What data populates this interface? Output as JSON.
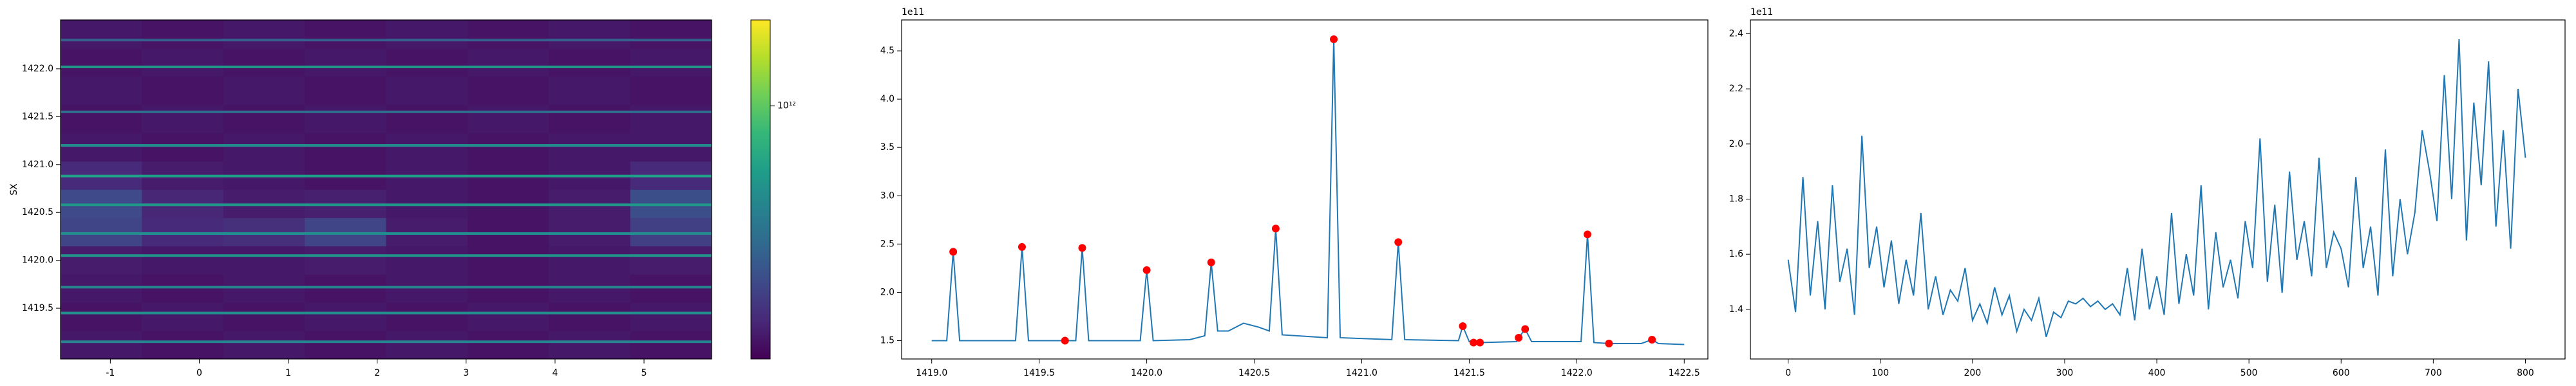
{
  "chart_data": [
    {
      "type": "heatmap",
      "ylabel": "SX",
      "x_edges": [
        -1.56,
        -0.645,
        0.27,
        1.185,
        2.1,
        3.015,
        3.93,
        4.845,
        5.76
      ],
      "y_edges": [
        1418.97,
        1419.265,
        1419.56,
        1419.855,
        1420.15,
        1420.445,
        1420.74,
        1421.035,
        1421.33,
        1421.625,
        1421.92,
        1422.215,
        1422.51
      ],
      "z": [
        [
          155000000000.0,
          150000000000.0,
          155000000000.0,
          150000000000.0,
          155000000000.0,
          150000000000.0,
          155000000000.0,
          150000000000.0
        ],
        [
          150000000000.0,
          155000000000.0,
          150000000000.0,
          155000000000.0,
          150000000000.0,
          155000000000.0,
          150000000000.0,
          155000000000.0
        ],
        [
          155000000000.0,
          150000000000.0,
          155000000000.0,
          150000000000.0,
          155000000000.0,
          150000000000.0,
          155000000000.0,
          150000000000.0
        ],
        [
          160000000000.0,
          155000000000.0,
          155000000000.0,
          160000000000.0,
          155000000000.0,
          150000000000.0,
          155000000000.0,
          160000000000.0
        ],
        [
          230000000000.0,
          180000000000.0,
          190000000000.0,
          230000000000.0,
          160000000000.0,
          150000000000.0,
          160000000000.0,
          220000000000.0
        ],
        [
          240000000000.0,
          175000000000.0,
          160000000000.0,
          165000000000.0,
          155000000000.0,
          150000000000.0,
          160000000000.0,
          250000000000.0
        ],
        [
          180000000000.0,
          160000000000.0,
          155000000000.0,
          150000000000.0,
          155000000000.0,
          150000000000.0,
          155000000000.0,
          180000000000.0
        ],
        [
          155000000000.0,
          150000000000.0,
          155000000000.0,
          150000000000.0,
          155000000000.0,
          150000000000.0,
          155000000000.0,
          155000000000.0
        ],
        [
          150000000000.0,
          155000000000.0,
          150000000000.0,
          155000000000.0,
          150000000000.0,
          155000000000.0,
          150000000000.0,
          155000000000.0
        ],
        [
          155000000000.0,
          150000000000.0,
          155000000000.0,
          150000000000.0,
          155000000000.0,
          150000000000.0,
          155000000000.0,
          150000000000.0
        ],
        [
          150000000000.0,
          155000000000.0,
          150000000000.0,
          155000000000.0,
          150000000000.0,
          155000000000.0,
          150000000000.0,
          155000000000.0
        ],
        [
          155000000000.0,
          150000000000.0,
          155000000000.0,
          150000000000.0,
          155000000000.0,
          150000000000.0,
          155000000000.0,
          150000000000.0
        ]
      ],
      "streaks": {
        "y": [
          1419.15,
          1419.45,
          1419.72,
          1420.05,
          1420.28,
          1420.58,
          1420.88,
          1421.2,
          1421.55,
          1422.02,
          1422.3
        ],
        "values": [
          450000000000.0,
          500000000000.0,
          450000000000.0,
          550000000000.0,
          500000000000.0,
          550000000000.0,
          600000000000.0,
          500000000000.0,
          350000000000.0,
          550000000000.0,
          300000000000.0
        ]
      },
      "xlim": [
        -1.56,
        5.76
      ],
      "ylim": [
        1418.97,
        1422.51
      ],
      "xticks": [
        -1,
        0,
        1,
        2,
        3,
        4,
        5
      ],
      "yticks": [
        1419.5,
        {
          "value": 1420,
          "label": "1420.0"
        },
        1420.5,
        {
          "value": 1421,
          "label": "1421.0"
        },
        1421.5,
        {
          "value": 1422,
          "label": "1422.0"
        }
      ],
      "colorbar": {
        "colormap": "viridis",
        "log": true,
        "clim": [
          130000000000.0,
          2000000000000.0
        ],
        "ticks": [
          {
            "value": 1000000000000.0,
            "label": "10¹²"
          }
        ]
      }
    },
    {
      "type": "line",
      "y_offset_label": "1e11",
      "x": [
        1419.0,
        1419.07,
        1419.1,
        1419.13,
        1419.39,
        1419.42,
        1419.45,
        1419.62,
        1419.67,
        1419.7,
        1419.73,
        1419.97,
        1420.0,
        1420.03,
        1420.2,
        1420.27,
        1420.3,
        1420.33,
        1420.38,
        1420.45,
        1420.52,
        1420.57,
        1420.6,
        1420.63,
        1420.84,
        1420.87,
        1420.9,
        1421.14,
        1421.17,
        1421.2,
        1421.45,
        1421.47,
        1421.5,
        1421.52,
        1421.55,
        1421.72,
        1421.73,
        1421.76,
        1421.79,
        1422.02,
        1422.05,
        1422.08,
        1422.15,
        1422.3,
        1422.35,
        1422.38,
        1422.5
      ],
      "series": [
        {
          "color": "#1f77b4",
          "values": [
            1.5,
            1.5,
            2.42,
            1.5,
            1.5,
            2.47,
            1.5,
            1.5,
            1.5,
            2.46,
            1.5,
            1.5,
            2.23,
            1.5,
            1.51,
            1.55,
            2.31,
            1.6,
            1.6,
            1.68,
            1.64,
            1.6,
            2.66,
            1.56,
            1.53,
            4.62,
            1.53,
            1.51,
            2.52,
            1.51,
            1.5,
            1.65,
            1.49,
            1.48,
            1.48,
            1.49,
            1.53,
            1.62,
            1.49,
            1.49,
            2.6,
            1.48,
            1.47,
            1.47,
            1.51,
            1.47,
            1.46
          ]
        }
      ],
      "markers": {
        "color": "#ff0000",
        "x": [
          1419.1,
          1419.42,
          1419.62,
          1419.7,
          1420.0,
          1420.3,
          1420.6,
          1420.87,
          1421.17,
          1421.47,
          1421.52,
          1421.55,
          1421.73,
          1421.76,
          1422.05,
          1422.15,
          1422.35
        ],
        "values": [
          2.42,
          2.47,
          1.5,
          2.46,
          2.23,
          2.31,
          2.66,
          4.62,
          2.52,
          1.65,
          1.48,
          1.48,
          1.53,
          1.62,
          2.6,
          1.47,
          1.51
        ]
      },
      "xlim": [
        1418.86,
        1422.61
      ],
      "ylim": [
        1.31,
        4.82
      ],
      "xticks": [
        {
          "value": 1419,
          "label": "1419.0"
        },
        1419.5,
        {
          "value": 1420,
          "label": "1420.0"
        },
        1420.5,
        {
          "value": 1421,
          "label": "1421.0"
        },
        1421.5,
        {
          "value": 1422,
          "label": "1422.0"
        },
        1422.5
      ],
      "yticks": [
        1.5,
        {
          "value": 2,
          "label": "2.0"
        },
        2.5,
        {
          "value": 3,
          "label": "3.0"
        },
        3.5,
        {
          "value": 4,
          "label": "4.0"
        },
        4.5
      ]
    },
    {
      "type": "line",
      "y_offset_label": "1e11",
      "x": [
        0,
        8,
        16,
        24,
        32,
        40,
        48,
        56,
        64,
        72,
        80,
        88,
        96,
        104,
        112,
        120,
        128,
        136,
        144,
        152,
        160,
        168,
        176,
        184,
        192,
        200,
        208,
        216,
        224,
        232,
        240,
        248,
        256,
        264,
        272,
        280,
        288,
        296,
        304,
        312,
        320,
        328,
        336,
        344,
        352,
        360,
        368,
        376,
        384,
        392,
        400,
        408,
        416,
        424,
        432,
        440,
        448,
        456,
        464,
        472,
        480,
        488,
        496,
        504,
        512,
        520,
        528,
        536,
        544,
        552,
        560,
        568,
        576,
        584,
        592,
        600,
        608,
        616,
        624,
        632,
        640,
        648,
        656,
        664,
        672,
        680,
        688,
        696,
        704,
        712,
        720,
        728,
        736,
        744,
        752,
        760,
        768,
        776,
        784,
        792,
        800
      ],
      "series": [
        {
          "color": "#1f77b4",
          "values": [
            1.58,
            1.39,
            1.88,
            1.45,
            1.72,
            1.4,
            1.85,
            1.5,
            1.62,
            1.38,
            2.03,
            1.55,
            1.7,
            1.48,
            1.65,
            1.42,
            1.58,
            1.45,
            1.75,
            1.4,
            1.52,
            1.38,
            1.47,
            1.43,
            1.55,
            1.36,
            1.42,
            1.35,
            1.48,
            1.38,
            1.45,
            1.32,
            1.4,
            1.36,
            1.44,
            1.3,
            1.39,
            1.37,
            1.43,
            1.42,
            1.44,
            1.41,
            1.43,
            1.4,
            1.42,
            1.38,
            1.55,
            1.36,
            1.62,
            1.4,
            1.52,
            1.38,
            1.75,
            1.42,
            1.6,
            1.45,
            1.85,
            1.4,
            1.68,
            1.48,
            1.58,
            1.44,
            1.72,
            1.55,
            2.02,
            1.5,
            1.78,
            1.46,
            1.9,
            1.58,
            1.72,
            1.52,
            1.95,
            1.55,
            1.68,
            1.62,
            1.48,
            1.88,
            1.55,
            1.7,
            1.45,
            1.98,
            1.52,
            1.8,
            1.6,
            1.75,
            2.05,
            1.9,
            1.72,
            2.25,
            1.8,
            2.38,
            1.65,
            2.15,
            1.85,
            2.3,
            1.7,
            2.05,
            1.62,
            2.2,
            1.95
          ]
        }
      ],
      "xlim": [
        -41,
        843
      ],
      "ylim": [
        1.22,
        2.45
      ],
      "xticks": [
        0,
        100,
        200,
        300,
        400,
        500,
        600,
        700,
        800
      ],
      "yticks": [
        1.4,
        1.6,
        1.8,
        {
          "value": 2,
          "label": "2.0"
        },
        2.2,
        2.4
      ]
    }
  ]
}
